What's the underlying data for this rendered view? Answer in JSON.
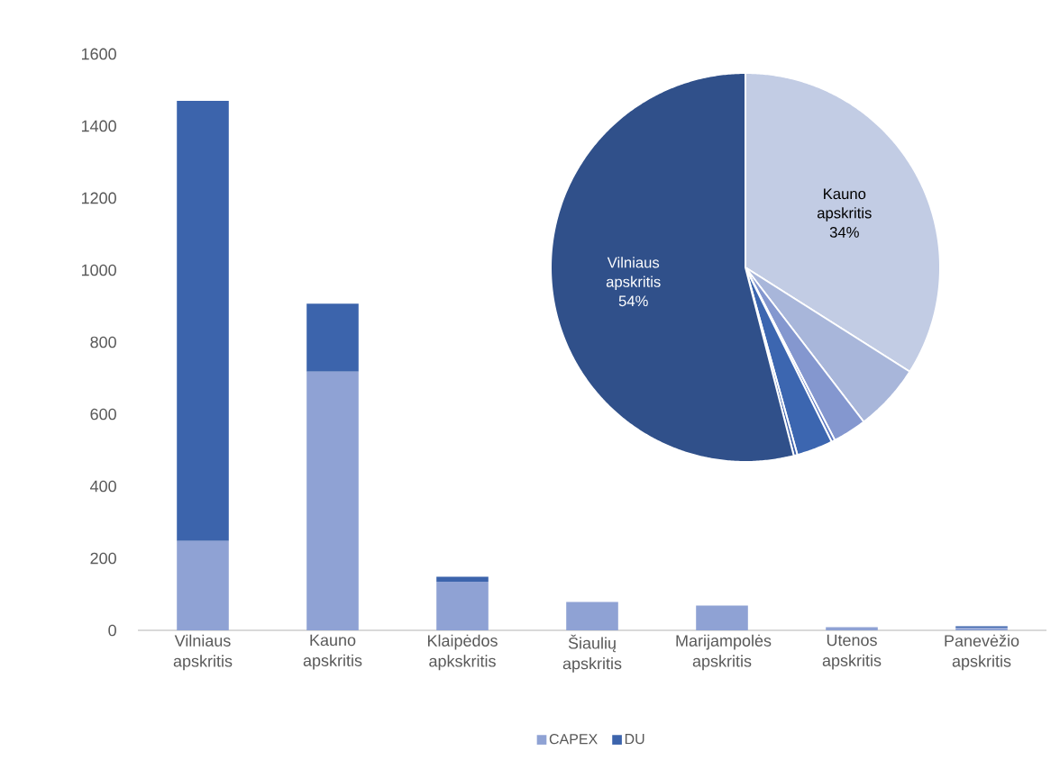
{
  "chart_data": [
    {
      "type": "bar",
      "stacked": true,
      "legend": "bottom",
      "categories": [
        "Vilniaus apskritis",
        "Kauno apskritis",
        "Klaipėdos apkskritis",
        "Šiaulių apskritis",
        "Marijampolės apskritis",
        "Utenos apskritis",
        "Panevėžio apskritis"
      ],
      "series": [
        {
          "name": "CAPEX",
          "color": "#8fa2d4",
          "values": [
            248,
            718,
            135,
            79,
            69,
            9,
            7
          ]
        },
        {
          "name": "DU",
          "color": "#3c64ac",
          "values": [
            1222,
            189,
            14,
            0,
            0,
            0,
            4
          ]
        }
      ],
      "ylim": [
        0,
        1600
      ],
      "yticks": [
        0,
        200,
        400,
        600,
        800,
        1000,
        1200,
        1400,
        1600
      ]
    },
    {
      "type": "pie",
      "categories": [
        "Kauno apskritis",
        null,
        null,
        null,
        null,
        null,
        "Vilniaus apskritis"
      ],
      "values": [
        34,
        5.6,
        2.8,
        0.3,
        3.0,
        0.3,
        54
      ],
      "colors": [
        "#c2cce4",
        "#a8b6da",
        "#8497cf",
        "#5a76c0",
        "#3c66b0",
        "#3a5ea8",
        "#30508a"
      ],
      "value_labels": [
        "34%",
        null,
        null,
        null,
        null,
        null,
        "54%"
      ]
    }
  ]
}
